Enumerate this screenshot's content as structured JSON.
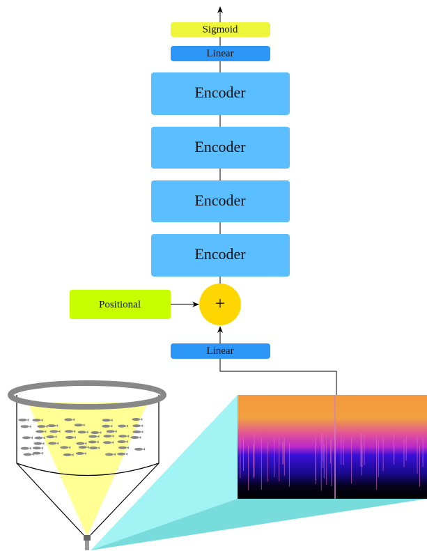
{
  "nodes": [
    {
      "label": "Sigmoid"
    },
    {
      "label": "Linear"
    },
    {
      "label": "Encoder"
    },
    {
      "label": "Encoder"
    },
    {
      "label": "Encoder"
    },
    {
      "label": "Encoder"
    },
    {
      "label": "+"
    },
    {
      "label": "Positional"
    },
    {
      "label": "Linear"
    }
  ]
}
